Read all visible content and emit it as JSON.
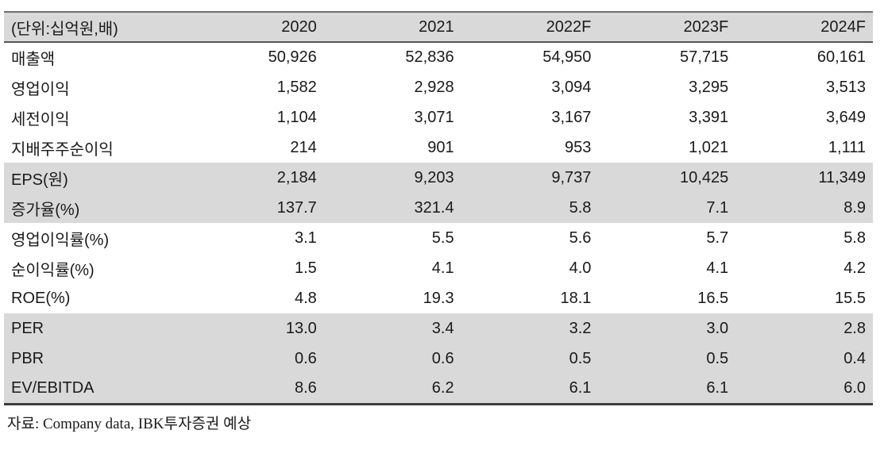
{
  "table": {
    "unit_header": "(단위:십억원,배)",
    "year_columns": [
      "2020",
      "2021",
      "2022F",
      "2023F",
      "2024F"
    ],
    "rows": [
      {
        "label": "매출액",
        "values": [
          "50,926",
          "52,836",
          "54,950",
          "57,715",
          "60,161"
        ],
        "highlight": false
      },
      {
        "label": "영업이익",
        "values": [
          "1,582",
          "2,928",
          "3,094",
          "3,295",
          "3,513"
        ],
        "highlight": false
      },
      {
        "label": "세전이익",
        "values": [
          "1,104",
          "3,071",
          "3,167",
          "3,391",
          "3,649"
        ],
        "highlight": false
      },
      {
        "label": "지배주주순이익",
        "values": [
          "214",
          "901",
          "953",
          "1,021",
          "1,111"
        ],
        "highlight": false
      },
      {
        "label": "EPS(원)",
        "values": [
          "2,184",
          "9,203",
          "9,737",
          "10,425",
          "11,349"
        ],
        "highlight": true
      },
      {
        "label": "증가율(%)",
        "values": [
          "137.7",
          "321.4",
          "5.8",
          "7.1",
          "8.9"
        ],
        "highlight": true
      },
      {
        "label": "영업이익률(%)",
        "values": [
          "3.1",
          "5.5",
          "5.6",
          "5.7",
          "5.8"
        ],
        "highlight": false
      },
      {
        "label": "순이익률(%)",
        "values": [
          "1.5",
          "4.1",
          "4.0",
          "4.1",
          "4.2"
        ],
        "highlight": false
      },
      {
        "label": "ROE(%)",
        "values": [
          "4.8",
          "19.3",
          "18.1",
          "16.5",
          "15.5"
        ],
        "highlight": false
      },
      {
        "label": "PER",
        "values": [
          "13.0",
          "3.4",
          "3.2",
          "3.0",
          "2.8"
        ],
        "highlight": true
      },
      {
        "label": "PBR",
        "values": [
          "0.6",
          "0.6",
          "0.5",
          "0.5",
          "0.4"
        ],
        "highlight": true
      },
      {
        "label": "EV/EBITDA",
        "values": [
          "8.6",
          "6.2",
          "6.1",
          "6.1",
          "6.0"
        ],
        "highlight": true
      }
    ]
  },
  "footer": {
    "source": "자료: Company data, IBK투자증권 예상"
  },
  "colors": {
    "band_gray": "#d9d9d9",
    "border_top": "#6e6e6e",
    "border_bottom": "#3d3d3d",
    "text": "#1a1a1a"
  }
}
